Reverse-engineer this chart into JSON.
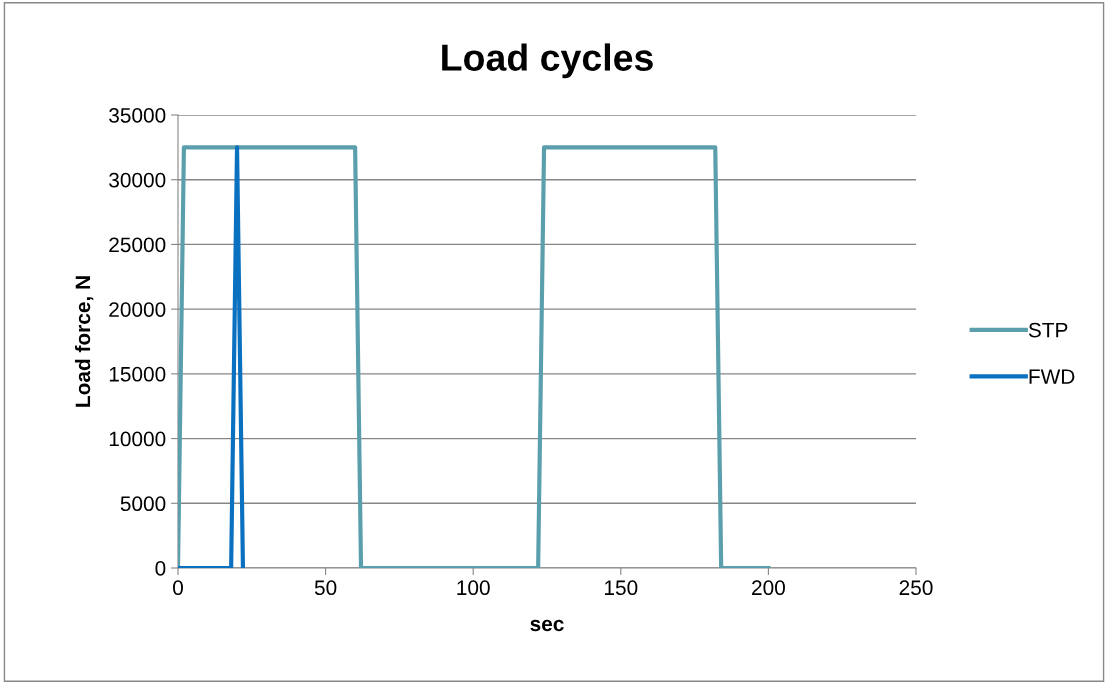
{
  "chart_data": {
    "type": "line",
    "title": "Load cycles",
    "xlabel": "sec",
    "ylabel": "Load force, N",
    "series": [
      {
        "name": "STP",
        "color": "#5b9fad",
        "x": [
          0,
          2,
          60,
          62,
          122,
          124,
          182,
          184,
          200
        ],
        "values": [
          0,
          32500,
          32500,
          0,
          0,
          32500,
          32500,
          0,
          0
        ]
      },
      {
        "name": "FWD",
        "color": "#0a70c0",
        "x": [
          0,
          18,
          20,
          22
        ],
        "values": [
          0,
          0,
          32500,
          0
        ]
      }
    ],
    "xlim": [
      0,
      250
    ],
    "xticks": [
      0,
      50,
      100,
      150,
      200,
      250
    ],
    "ylim": [
      0,
      35000
    ],
    "yticks": [
      0,
      5000,
      10000,
      15000,
      20000,
      25000,
      30000,
      35000
    ],
    "grid": "y",
    "legend": "right",
    "marker": "none",
    "line_style": "solid"
  }
}
